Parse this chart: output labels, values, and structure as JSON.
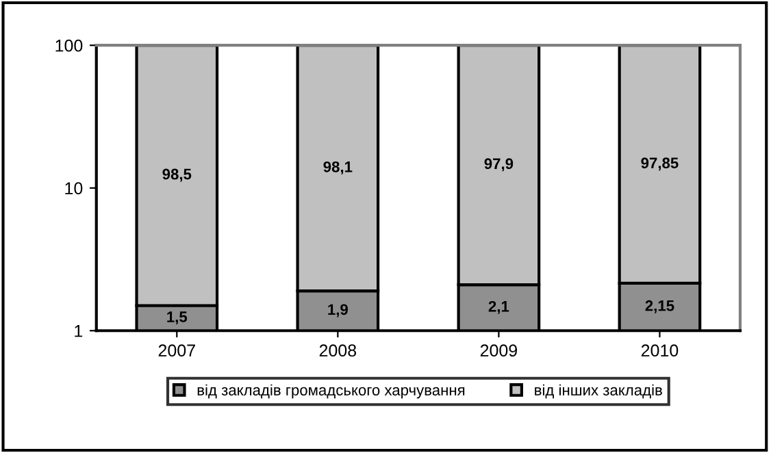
{
  "chart_data": {
    "type": "bar",
    "stacked": true,
    "log": true,
    "categories": [
      "2007",
      "2008",
      "2009",
      "2010"
    ],
    "series": [
      {
        "name": "від закладів громадського харчування",
        "color": "#909090",
        "values": [
          1.5,
          1.9,
          2.1,
          2.15
        ],
        "value_labels": [
          "1,5",
          "1,9",
          "2,1",
          "2,15"
        ]
      },
      {
        "name": "від інших закладів",
        "color": "#c0c0c0",
        "values": [
          98.5,
          98.1,
          97.9,
          97.85
        ],
        "value_labels": [
          "98,5",
          "98,1",
          "97,9",
          "97,85"
        ]
      }
    ],
    "ylim": [
      1,
      100
    ],
    "yticks": [
      1,
      10,
      100
    ],
    "grid": false,
    "legend": "bottom"
  }
}
